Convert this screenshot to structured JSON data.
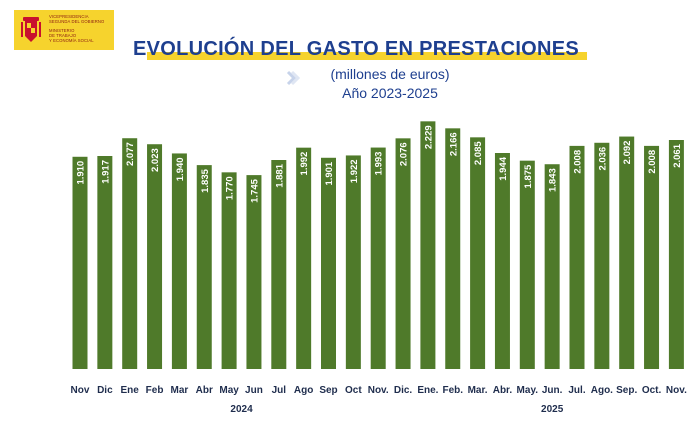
{
  "header": {
    "logo_lines": [
      "VICEPRESIDENCIA",
      "SEGUNDA DEL GOBIERNO",
      "MINISTERIO",
      "DE TRABAJO",
      "Y ECONOMÍA SOCIAL"
    ]
  },
  "colors": {
    "bar": "#4f7a2a",
    "title": "#1e3f8f",
    "accent_band": "#f6d32d"
  },
  "chart_data": {
    "type": "bar",
    "title": "EVOLUCIÓN DEL GASTO EN PRESTACIONES",
    "subtitle": "(millones de euros)",
    "subtitle2": "Año 2023-2025",
    "categories": [
      "Nov",
      "Dic",
      "Ene",
      "Feb",
      "Mar",
      "Abr",
      "May",
      "Jun",
      "Jul",
      "Ago",
      "Sep",
      "Oct",
      "Nov.",
      "Dic.",
      "Ene.",
      "Feb.",
      "Mar.",
      "Abr.",
      "May.",
      "Jun.",
      "Jul.",
      "Ago.",
      "Sep.",
      "Oct.",
      "Nov."
    ],
    "values": [
      1910,
      1917,
      2077,
      2023,
      1940,
      1835,
      1770,
      1745,
      1881,
      1992,
      1901,
      1922,
      1993,
      2076,
      2229,
      2166,
      2085,
      1944,
      1875,
      1843,
      2008,
      2036,
      2092,
      2008,
      2061
    ],
    "value_labels": [
      "1.910",
      "1.917",
      "2.077",
      "2.023",
      "1.940",
      "1.835",
      "1.770",
      "1.745",
      "1.881",
      "1.992",
      "1.901",
      "1.922",
      "1.993",
      "2.076",
      "2.229",
      "2.166",
      "2.085",
      "1.944",
      "1.875",
      "1.843",
      "2.008",
      "2.036",
      "2.092",
      "2.008",
      "2.061"
    ],
    "year_groups": [
      {
        "label": "2024",
        "start": 2,
        "end": 11
      },
      {
        "label": "2025",
        "start": 14,
        "end": 24
      }
    ],
    "ylim": [
      0,
      2250
    ],
    "grid": false,
    "legend": "none"
  }
}
